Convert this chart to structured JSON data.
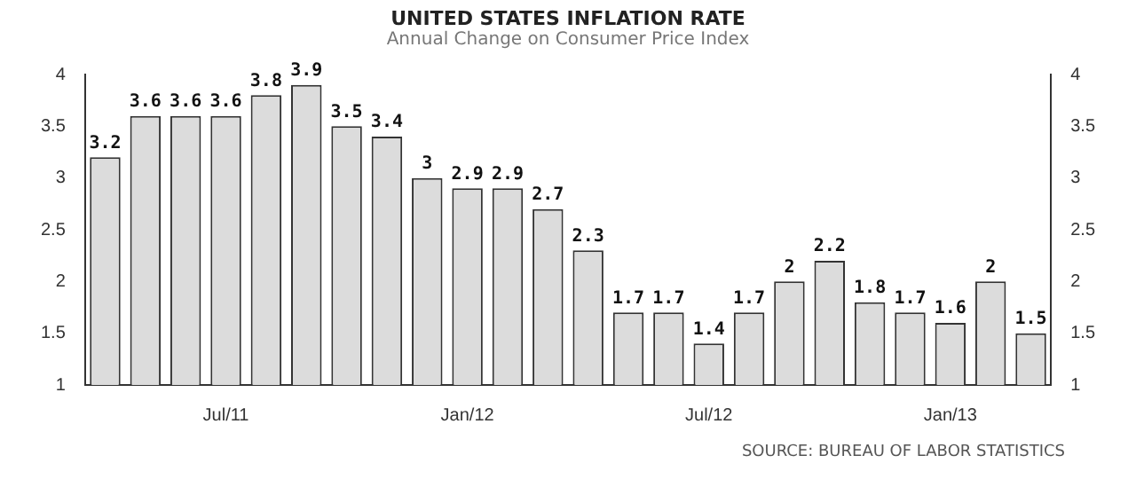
{
  "chart_data": {
    "type": "bar",
    "title": "UNITED STATES INFLATION RATE",
    "subtitle": "Annual Change on Consumer Price Index",
    "categories": [
      null,
      null,
      null,
      "Jul/11",
      null,
      null,
      null,
      null,
      null,
      "Jan/12",
      null,
      null,
      null,
      null,
      null,
      "Jul/12",
      null,
      null,
      null,
      null,
      null,
      "Jan/13",
      null,
      null
    ],
    "values": [
      3.2,
      3.6,
      3.6,
      3.6,
      3.8,
      3.9,
      3.5,
      3.4,
      3,
      2.9,
      2.9,
      2.7,
      2.3,
      1.7,
      1.7,
      1.4,
      1.7,
      2,
      2.2,
      1.8,
      1.7,
      1.6,
      2,
      1.5
    ],
    "color": "#dcdcdc",
    "ylim": [
      1,
      4
    ],
    "yticks": [
      1,
      1.5,
      2,
      2.5,
      3,
      3.5,
      4
    ],
    "y2lim": [
      1,
      4
    ],
    "y2ticks": [
      1,
      1.5,
      2,
      2.5,
      3,
      3.5,
      4
    ],
    "data_labels": true,
    "grid": false,
    "legend": false,
    "annotations": [
      "SOURCE: BUREAU OF LABOR STATISTICS"
    ]
  }
}
